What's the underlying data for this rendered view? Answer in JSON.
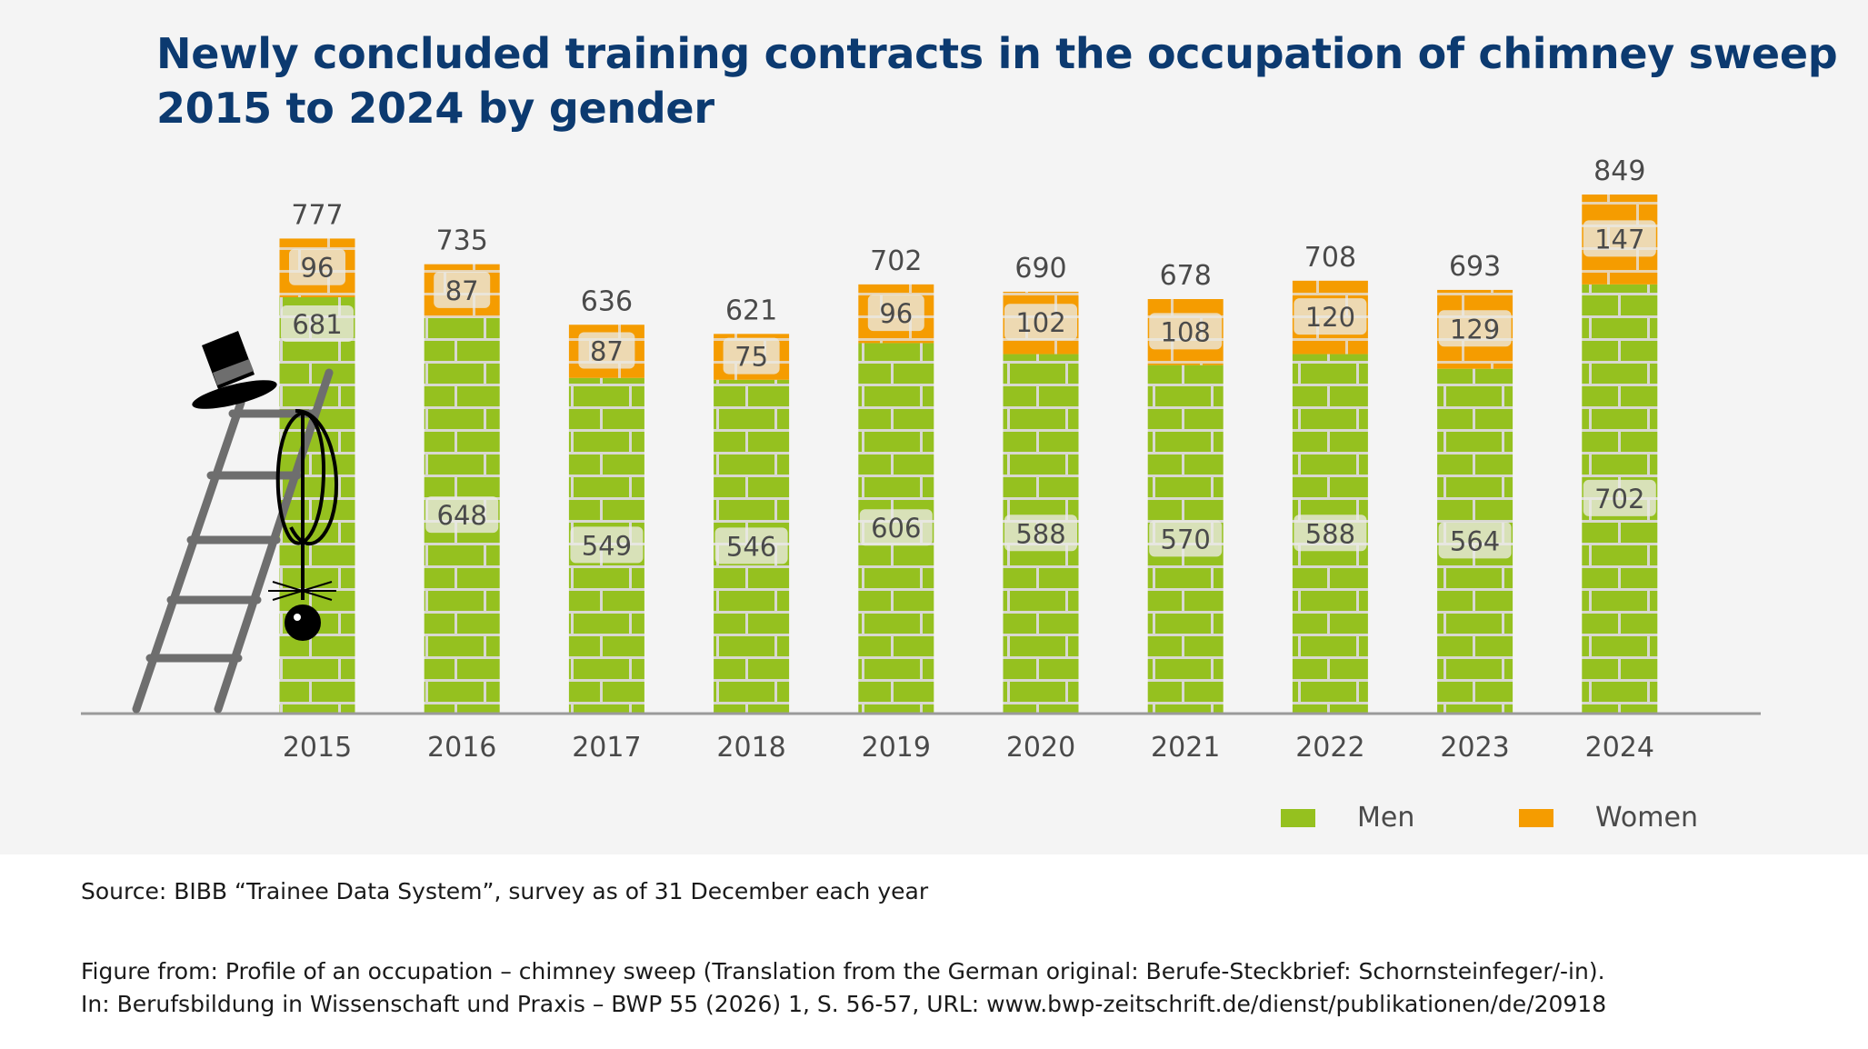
{
  "title": {
    "line1": "Newly concluded training contracts in the occupation of chimney sweep",
    "line2": "2015 to 2024 by gender"
  },
  "chart_data": {
    "type": "bar",
    "stacked": true,
    "title": "Newly concluded training contracts in the occupation of chimney sweep 2015 to 2024 by gender",
    "xlabel": "",
    "ylabel": "",
    "categories": [
      "2015",
      "2016",
      "2017",
      "2018",
      "2019",
      "2020",
      "2021",
      "2022",
      "2023",
      "2024"
    ],
    "series": [
      {
        "name": "Men",
        "color": "#95c11f",
        "values": [
          681,
          648,
          549,
          546,
          606,
          588,
          570,
          588,
          564,
          702
        ]
      },
      {
        "name": "Women",
        "color": "#f59c00",
        "values": [
          96,
          87,
          87,
          75,
          96,
          102,
          108,
          120,
          129,
          147
        ]
      }
    ],
    "totals": [
      777,
      735,
      636,
      621,
      702,
      690,
      678,
      708,
      693,
      849
    ],
    "ylim": [
      0,
      849
    ],
    "grid": false,
    "legend_position": "bottom-right"
  },
  "legend": {
    "men": "Men",
    "women": "Women"
  },
  "source": "Source: BIBB “Trainee Data System”, survey as of 31 December each year",
  "citation": {
    "line1": "Figure from: Profile of an occupation – chimney sweep (Translation from the German original: Berufe-Steckbrief: Schornsteinfeger/-in).",
    "line2": "In: Berufsbildung in Wissenschaft und Praxis – BWP 55 (2026) 1, S. 56-57, URL: www.bwp-zeitschrift.de/dienst/publikationen/de/20918"
  }
}
